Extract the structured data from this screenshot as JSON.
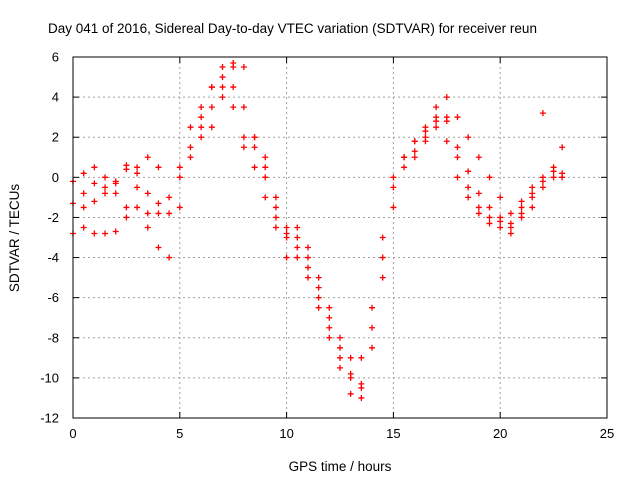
{
  "chart_data": {
    "type": "scatter",
    "title": "Day 041 of 2016, Sidereal Day-to-day VTEC variation (SDTVAR) for receiver reun",
    "xlabel": "GPS time / hours",
    "ylabel": "SDTVAR / TECUs",
    "xlim": [
      0,
      25
    ],
    "ylim": [
      -12,
      6
    ],
    "x_ticks": [
      0,
      5,
      10,
      15,
      20,
      25
    ],
    "y_ticks": [
      -12,
      -10,
      -8,
      -6,
      -4,
      -2,
      0,
      2,
      4,
      6
    ],
    "grid": true,
    "marker_color": "#ff0000",
    "series": [
      {
        "x": [
          0.0,
          0.5,
          1.0,
          1.5,
          2.0,
          2.5,
          3.0,
          3.5,
          4.0,
          4.5,
          5.0,
          5.5,
          6.0,
          6.5,
          7.0,
          7.5,
          8.0,
          8.5,
          9.0,
          9.5,
          10.0,
          10.5,
          11.0,
          11.5,
          12.0,
          12.5,
          13.0,
          13.5,
          14.0,
          14.5,
          15.0,
          15.5,
          16.0,
          16.5,
          17.0,
          17.5,
          18.0,
          18.5,
          19.0,
          19.5,
          20.0,
          20.5,
          21.0,
          21.5,
          22.0,
          22.5,
          22.9
        ],
        "y": [
          -1.3,
          -0.8,
          -0.3,
          -0.5,
          -0.2,
          0.4,
          0.2,
          -0.8,
          -1.3,
          -1.0,
          0.0,
          1.5,
          3.0,
          4.5,
          5.5,
          5.5,
          3.5,
          2.0,
          1.0,
          -1.5,
          -2.5,
          -3.0,
          -4.5,
          -6.5,
          -8.0,
          -9.5,
          -10.8,
          -10.5,
          -8.5,
          -5.0,
          -1.5,
          0.5,
          1.3,
          1.8,
          2.5,
          2.8,
          1.5,
          0.3,
          -0.8,
          -1.5,
          -2.0,
          -2.3,
          -1.8,
          -1.0,
          -0.5,
          0.0,
          0.2
        ]
      },
      {
        "x": [
          0.0,
          0.5,
          1.0,
          1.5,
          2.0,
          2.5,
          3.0,
          3.5,
          4.0,
          4.5,
          5.0,
          5.5,
          6.0,
          6.5,
          7.0,
          7.5,
          8.0,
          8.5,
          9.0,
          9.5,
          10.0,
          10.5,
          11.0,
          11.5,
          12.0,
          12.5,
          13.0,
          13.5,
          14.0,
          14.5,
          15.0,
          15.5,
          16.0,
          16.5,
          17.0,
          17.5,
          18.0,
          18.5,
          19.0,
          19.5,
          20.0,
          20.5,
          21.0,
          21.5,
          22.0,
          22.5,
          22.9
        ],
        "y": [
          -0.2,
          0.2,
          0.5,
          0.0,
          -0.8,
          -1.5,
          -1.5,
          -1.8,
          -1.8,
          -1.8,
          0.5,
          2.5,
          3.5,
          4.5,
          5.0,
          4.5,
          2.0,
          1.5,
          0.0,
          -2.5,
          -2.8,
          -3.5,
          -4.0,
          -5.5,
          -6.5,
          -8.0,
          -9.8,
          -10.3,
          -7.5,
          -4.0,
          -0.5,
          1.0,
          1.8,
          2.5,
          3.5,
          3.0,
          1.0,
          -0.5,
          -1.5,
          -2.0,
          -2.2,
          -2.5,
          -1.5,
          -0.8,
          -0.2,
          0.5,
          1.5
        ]
      },
      {
        "x": [
          0.0,
          0.5,
          1.0,
          1.5,
          2.0,
          2.5,
          3.0,
          3.5,
          4.0,
          4.5,
          5.0,
          5.5,
          6.0,
          6.5,
          7.0,
          7.5,
          8.0,
          8.5,
          9.0,
          9.5,
          10.0,
          10.5,
          11.0,
          11.5,
          12.0,
          12.5,
          13.0,
          13.5,
          14.0,
          14.5,
          15.0,
          15.5,
          16.0,
          16.5,
          17.0,
          17.5,
          18.0,
          18.5,
          19.0,
          19.5,
          20.0,
          20.5,
          21.0,
          21.5,
          22.0,
          22.5,
          22.9
        ],
        "y": [
          -2.8,
          -1.5,
          -1.2,
          -0.8,
          -0.3,
          0.6,
          -0.5,
          -2.5,
          -3.5,
          -4.0,
          -1.5,
          1.0,
          2.5,
          3.5,
          4.0,
          3.5,
          1.5,
          0.5,
          -1.0,
          -2.0,
          -3.0,
          -4.0,
          -5.0,
          -6.0,
          -7.5,
          -8.5,
          -9.0,
          -9.0,
          -6.5,
          -3.0,
          0.0,
          1.0,
          1.8,
          2.3,
          2.8,
          1.8,
          0.0,
          -1.0,
          -1.8,
          -2.3,
          -2.5,
          -2.8,
          -1.2,
          -0.5,
          0.0,
          0.3,
          0.0
        ]
      },
      {
        "x": [
          0.5,
          1.0,
          1.5,
          2.0,
          2.5,
          3.0,
          3.5,
          4.0,
          6.0,
          6.5,
          7.0,
          7.5,
          8.0,
          8.5,
          9.0,
          9.5,
          10.0,
          10.5,
          11.0,
          11.5,
          12.0,
          12.5,
          13.0,
          13.5,
          16.0,
          16.5,
          17.0,
          17.5,
          18.0,
          18.5,
          19.0,
          19.5,
          20.0,
          20.5,
          21.0,
          21.5,
          22.0
        ],
        "y": [
          -2.5,
          -2.8,
          -2.8,
          -2.7,
          -2.0,
          0.5,
          1.0,
          0.5,
          2.0,
          2.5,
          4.5,
          5.7,
          5.5,
          2.0,
          0.5,
          -1.0,
          -4.0,
          -2.5,
          -3.5,
          -5.0,
          -7.0,
          -9.0,
          -10.0,
          -11.0,
          1.0,
          2.0,
          3.0,
          4.0,
          3.0,
          2.0,
          1.0,
          0.0,
          -1.0,
          -1.8,
          -2.0,
          -1.5,
          3.2
        ]
      }
    ]
  }
}
